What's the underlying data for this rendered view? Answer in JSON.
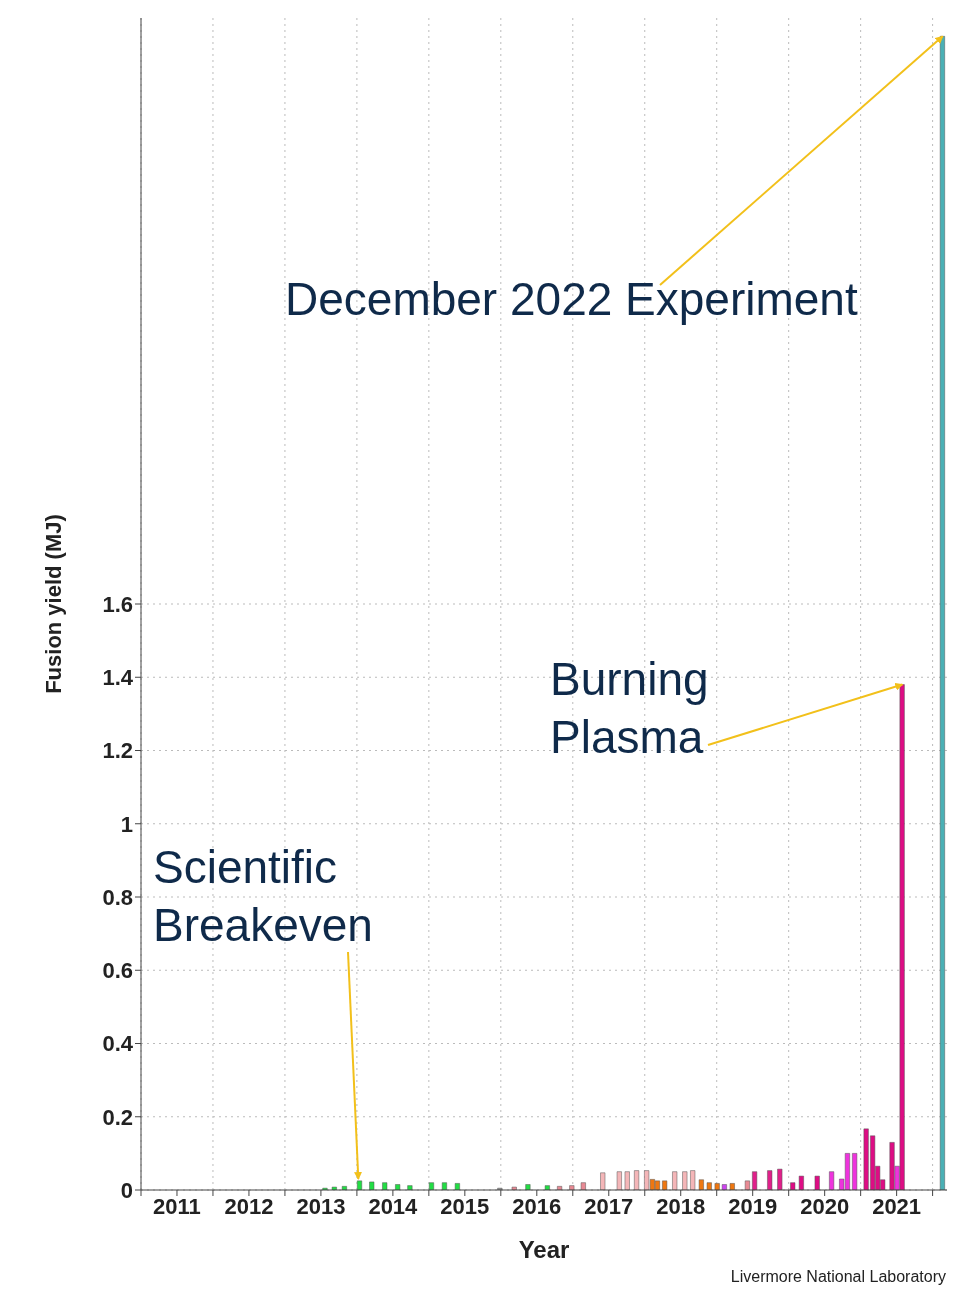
{
  "chart_data": {
    "type": "bar",
    "xlabel": "Year",
    "ylabel": "Fusion yield (MJ)",
    "x": [
      2013.56,
      2013.69,
      2013.83,
      2014.04,
      2014.21,
      2014.39,
      2014.57,
      2014.74,
      2015.04,
      2015.22,
      2015.4,
      2015.99,
      2016.19,
      2016.38,
      2016.65,
      2016.82,
      2016.99,
      2017.15,
      2017.42,
      2017.65,
      2017.76,
      2017.89,
      2018.03,
      2018.11,
      2018.18,
      2018.28,
      2018.42,
      2018.56,
      2018.67,
      2018.79,
      2018.9,
      2019.01,
      2019.11,
      2019.22,
      2019.43,
      2019.53,
      2019.74,
      2019.88,
      2020.06,
      2020.18,
      2020.4,
      2020.6,
      2020.74,
      2020.82,
      2020.92,
      2021.08,
      2021.17,
      2021.24,
      2021.31,
      2021.44,
      2021.51,
      2021.58,
      2022.14
    ],
    "values": [
      0.005,
      0.008,
      0.01,
      0.025,
      0.022,
      0.02,
      0.015,
      0.012,
      0.02,
      0.02,
      0.018,
      0.005,
      0.008,
      0.015,
      0.012,
      0.01,
      0.012,
      0.02,
      0.047,
      0.05,
      0.05,
      0.053,
      0.053,
      0.029,
      0.025,
      0.025,
      0.05,
      0.05,
      0.053,
      0.028,
      0.02,
      0.018,
      0.015,
      0.018,
      0.025,
      0.05,
      0.053,
      0.057,
      0.02,
      0.038,
      0.038,
      0.05,
      0.03,
      0.1,
      0.1,
      0.167,
      0.148,
      0.065,
      0.028,
      0.13,
      0.065,
      1.38,
      3.15
    ],
    "colors": [
      "#22dd44",
      "#22dd44",
      "#22dd44",
      "#22dd44",
      "#22dd44",
      "#22dd44",
      "#22dd44",
      "#22dd44",
      "#22dd44",
      "#22dd44",
      "#22dd44",
      "#999999",
      "#e88a94",
      "#22dd44",
      "#22dd44",
      "#e88a94",
      "#e88a94",
      "#e88a94",
      "#f4b6b8",
      "#f4b6b8",
      "#f4b6b8",
      "#f4b6b8",
      "#f4b6b8",
      "#ee7711",
      "#ee7711",
      "#ee7711",
      "#f4b6b8",
      "#f4b6b8",
      "#f4b6b8",
      "#ee7711",
      "#ee7711",
      "#ee7711",
      "#cc44ee",
      "#ee7711",
      "#e88a94",
      "#e0208a",
      "#e0208a",
      "#e0208a",
      "#dd0d84",
      "#dd0d84",
      "#dd0d84",
      "#ee33dd",
      "#ee33dd",
      "#ee33dd",
      "#ee33dd",
      "#dd0d84",
      "#dd0d84",
      "#dd0d84",
      "#dd0d84",
      "#dd0d84",
      "#ee33dd",
      "#dd0d84",
      "#4ab0b5"
    ],
    "xlim": [
      2011,
      2022.2
    ],
    "xticks": [
      {
        "value": 2011,
        "label": null
      },
      {
        "value": 2011.5,
        "label": "2011"
      },
      {
        "value": 2012,
        "label": null
      },
      {
        "value": 2012.5,
        "label": "2012"
      },
      {
        "value": 2013,
        "label": null
      },
      {
        "value": 2013.5,
        "label": "2013"
      },
      {
        "value": 2014,
        "label": null
      },
      {
        "value": 2014.5,
        "label": "2014"
      },
      {
        "value": 2015,
        "label": null
      },
      {
        "value": 2015.5,
        "label": "2015"
      },
      {
        "value": 2016,
        "label": null
      },
      {
        "value": 2016.5,
        "label": "2016"
      },
      {
        "value": 2017,
        "label": null
      },
      {
        "value": 2017.5,
        "label": "2017"
      },
      {
        "value": 2018,
        "label": null
      },
      {
        "value": 2018.5,
        "label": "2018"
      },
      {
        "value": 2019,
        "label": null
      },
      {
        "value": 2019.5,
        "label": "2019"
      },
      {
        "value": 2020,
        "label": null
      },
      {
        "value": 2020.5,
        "label": "2020"
      },
      {
        "value": 2021,
        "label": null
      },
      {
        "value": 2021.5,
        "label": "2021"
      },
      {
        "value": 2022,
        "label": null
      }
    ],
    "ylim": [
      0,
      3.2
    ],
    "yticks": [
      0,
      0.2,
      0.4,
      0.6,
      0.8,
      1,
      1.2,
      1.4,
      1.6
    ],
    "grid": true,
    "annotations": [
      {
        "text": "December 2022 Experiment",
        "x": 2022.14,
        "y": 3.15
      },
      {
        "text": "Burning Plasma",
        "x": 2021.58,
        "y": 1.38
      },
      {
        "text": "Scientific Breakeven",
        "x": 2014.02,
        "y": 0.03
      },
      "Livermore National Laboratory"
    ]
  }
}
